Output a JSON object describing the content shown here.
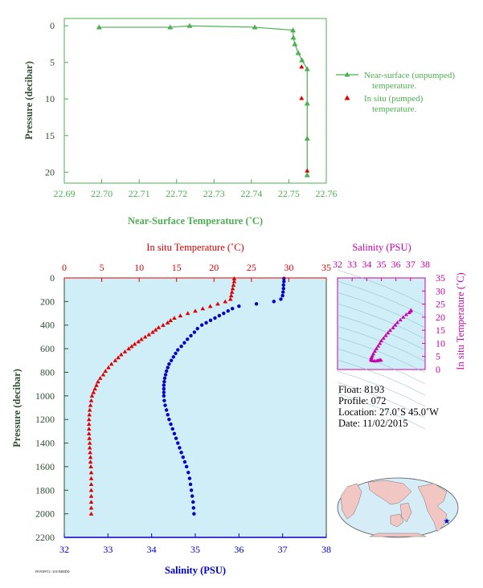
{
  "colors": {
    "green": "#4caf50",
    "red": "#e00000",
    "blue": "#0000cc",
    "magenta": "#cc00aa",
    "panel_bg": "#cfeef8",
    "axis_dark": "#2f4f2f"
  },
  "top_chart": {
    "xlabel": "Near-Surface Temperature (˚C)",
    "ylabel": "Pressure (decibar)",
    "xticks": [
      "22.69",
      "22.70",
      "22.71",
      "22.72",
      "22.73",
      "22.74",
      "22.75",
      "22.76"
    ],
    "yticks": [
      "0",
      "5",
      "10",
      "15",
      "20"
    ],
    "legend": {
      "unpumped_l1": "Near-surface (unpumped)",
      "unpumped_l2": "temperature.",
      "pumped_l1": "In situ (pumped)",
      "pumped_l2": "temperature."
    }
  },
  "bottom_chart": {
    "temp_label": "In situ Temperature (˚C)",
    "sal_label": "Salinity (PSU)",
    "ylabel": "Pressure (decibar)",
    "temp_ticks": [
      "0",
      "5",
      "10",
      "15",
      "20",
      "25",
      "30",
      "35"
    ],
    "sal_ticks": [
      "32",
      "33",
      "34",
      "35",
      "36",
      "37",
      "38"
    ],
    "pres_ticks": [
      "0",
      "200",
      "400",
      "600",
      "800",
      "1000",
      "1200",
      "1400",
      "1600",
      "1800",
      "2000",
      "2200"
    ]
  },
  "ts_chart": {
    "xlabel": "Salinity (PSU)",
    "ylabel": "In situ Temperature (˚C)",
    "sal_ticks": [
      "32",
      "33",
      "34",
      "35",
      "36",
      "37",
      "38"
    ],
    "temp_ticks": [
      "0",
      "5",
      "10",
      "15",
      "20",
      "25",
      "30",
      "35"
    ]
  },
  "info": {
    "float": "Float:  8193",
    "profile": "Profile:  072",
    "location": "Location:  27.0˚S  45.0˚W",
    "date": "Date:  11/02/2015"
  },
  "footer_id": "F8193P072 / 2015MMDD",
  "chart_data": [
    {
      "type": "line",
      "name": "near-surface",
      "xlabel": "Near-Surface Temperature (˚C)",
      "ylabel": "Pressure (decibar)",
      "xlim": [
        22.69,
        22.76
      ],
      "ylim": [
        21.5,
        -1
      ],
      "series": [
        {
          "name": "Near-surface (unpumped) temperature.",
          "points": [
            [
              22.6993,
              0.2
            ],
            [
              22.7183,
              0.2
            ],
            [
              22.7235,
              0.0
            ],
            [
              22.7409,
              0.2
            ],
            [
              22.7511,
              0.6
            ],
            [
              22.7512,
              1.6
            ],
            [
              22.7516,
              2.5
            ],
            [
              22.7525,
              3.7
            ],
            [
              22.7535,
              4.7
            ],
            [
              22.7549,
              5.9
            ],
            [
              22.7549,
              10.6
            ],
            [
              22.7549,
              15.4
            ],
            [
              22.7549,
              20.4
            ]
          ]
        },
        {
          "name": "In situ (pumped) temperature.",
          "points": [
            [
              22.7534,
              5.6
            ],
            [
              22.7534,
              9.9
            ],
            [
              22.7549,
              19.8
            ]
          ]
        }
      ]
    },
    {
      "type": "scatter",
      "name": "profile",
      "xlim_temperature": [
        0,
        35
      ],
      "xlim_salinity": [
        32,
        38
      ],
      "ylim": [
        0,
        2200
      ],
      "series": [
        {
          "name": "In situ Temperature (˚C)",
          "points": [
            [
              22.7,
              5
            ],
            [
              22.7,
              30
            ],
            [
              22.6,
              60
            ],
            [
              22.5,
              90
            ],
            [
              22.4,
              120
            ],
            [
              22.3,
              150
            ],
            [
              22.2,
              180
            ],
            [
              21.5,
              200
            ],
            [
              20.5,
              220
            ],
            [
              19.5,
              240
            ],
            [
              18.5,
              260
            ],
            [
              17.5,
              280
            ],
            [
              16.5,
              300
            ],
            [
              15.5,
              320
            ],
            [
              14.7,
              340
            ],
            [
              14.2,
              360
            ],
            [
              13.8,
              380
            ],
            [
              13.2,
              400
            ],
            [
              12.6,
              420
            ],
            [
              12.2,
              440
            ],
            [
              11.8,
              460
            ],
            [
              11.3,
              480
            ],
            [
              10.8,
              500
            ],
            [
              10.3,
              520
            ],
            [
              9.9,
              540
            ],
            [
              9.4,
              560
            ],
            [
              9.0,
              580
            ],
            [
              8.6,
              600
            ],
            [
              8.1,
              625
            ],
            [
              7.6,
              650
            ],
            [
              7.2,
              675
            ],
            [
              6.8,
              700
            ],
            [
              6.3,
              730
            ],
            [
              5.9,
              760
            ],
            [
              5.5,
              790
            ],
            [
              5.2,
              820
            ],
            [
              4.8,
              850
            ],
            [
              4.5,
              880
            ],
            [
              4.3,
              910
            ],
            [
              4.1,
              940
            ],
            [
              3.9,
              970
            ],
            [
              3.7,
              1000
            ],
            [
              3.6,
              1040
            ],
            [
              3.5,
              1080
            ],
            [
              3.4,
              1120
            ],
            [
              3.35,
              1160
            ],
            [
              3.3,
              1200
            ],
            [
              3.3,
              1240
            ],
            [
              3.3,
              1280
            ],
            [
              3.3,
              1320
            ],
            [
              3.35,
              1360
            ],
            [
              3.4,
              1400
            ],
            [
              3.4,
              1440
            ],
            [
              3.45,
              1480
            ],
            [
              3.5,
              1520
            ],
            [
              3.5,
              1560
            ],
            [
              3.55,
              1600
            ],
            [
              3.6,
              1650
            ],
            [
              3.6,
              1700
            ],
            [
              3.6,
              1750
            ],
            [
              3.6,
              1800
            ],
            [
              3.6,
              1850
            ],
            [
              3.6,
              1900
            ],
            [
              3.6,
              1950
            ],
            [
              3.6,
              2000
            ]
          ]
        },
        {
          "name": "Salinity (PSU)",
          "points": [
            [
              37.03,
              5
            ],
            [
              37.03,
              30
            ],
            [
              37.02,
              60
            ],
            [
              37.02,
              90
            ],
            [
              37.01,
              120
            ],
            [
              37.0,
              150
            ],
            [
              36.96,
              180
            ],
            [
              36.8,
              200
            ],
            [
              36.4,
              220
            ],
            [
              36.0,
              240
            ],
            [
              35.85,
              260
            ],
            [
              35.75,
              280
            ],
            [
              35.65,
              300
            ],
            [
              35.55,
              320
            ],
            [
              35.45,
              340
            ],
            [
              35.35,
              360
            ],
            [
              35.25,
              380
            ],
            [
              35.15,
              400
            ],
            [
              35.05,
              430
            ],
            [
              34.98,
              460
            ],
            [
              34.9,
              490
            ],
            [
              34.82,
              520
            ],
            [
              34.75,
              550
            ],
            [
              34.68,
              580
            ],
            [
              34.6,
              610
            ],
            [
              34.55,
              640
            ],
            [
              34.5,
              670
            ],
            [
              34.45,
              700
            ],
            [
              34.4,
              730
            ],
            [
              34.37,
              760
            ],
            [
              34.34,
              790
            ],
            [
              34.32,
              820
            ],
            [
              34.3,
              850
            ],
            [
              34.29,
              880
            ],
            [
              34.28,
              910
            ],
            [
              34.28,
              940
            ],
            [
              34.28,
              970
            ],
            [
              34.28,
              1000
            ],
            [
              34.29,
              1040
            ],
            [
              34.31,
              1080
            ],
            [
              34.34,
              1120
            ],
            [
              34.37,
              1160
            ],
            [
              34.4,
              1200
            ],
            [
              34.44,
              1240
            ],
            [
              34.48,
              1280
            ],
            [
              34.52,
              1320
            ],
            [
              34.56,
              1360
            ],
            [
              34.6,
              1400
            ],
            [
              34.64,
              1440
            ],
            [
              34.68,
              1480
            ],
            [
              34.72,
              1520
            ],
            [
              34.76,
              1560
            ],
            [
              34.8,
              1600
            ],
            [
              34.84,
              1650
            ],
            [
              34.87,
              1700
            ],
            [
              34.89,
              1750
            ],
            [
              34.91,
              1800
            ],
            [
              34.93,
              1850
            ],
            [
              34.95,
              1900
            ],
            [
              34.96,
              1950
            ],
            [
              34.97,
              2000
            ]
          ]
        }
      ]
    },
    {
      "type": "scatter",
      "name": "ts",
      "xlabel": "Salinity (PSU)",
      "ylabel": "In situ Temperature (˚C)",
      "xlim": [
        32,
        38
      ],
      "ylim": [
        0,
        35
      ],
      "series": [
        {
          "name": "T-S",
          "points": [
            [
              37.03,
              22.7
            ],
            [
              37.0,
              22.3
            ],
            [
              36.9,
              21.8
            ],
            [
              36.7,
              21.0
            ],
            [
              36.5,
              20.0
            ],
            [
              36.3,
              19.0
            ],
            [
              36.1,
              18.0
            ],
            [
              35.95,
              17.0
            ],
            [
              35.8,
              16.0
            ],
            [
              35.6,
              15.0
            ],
            [
              35.45,
              14.0
            ],
            [
              35.3,
              13.0
            ],
            [
              35.15,
              12.0
            ],
            [
              35.0,
              11.0
            ],
            [
              34.9,
              10.0
            ],
            [
              34.78,
              9.0
            ],
            [
              34.66,
              8.0
            ],
            [
              34.55,
              7.0
            ],
            [
              34.45,
              6.0
            ],
            [
              34.38,
              5.2
            ],
            [
              34.32,
              4.6
            ],
            [
              34.3,
              4.0
            ],
            [
              34.3,
              3.6
            ],
            [
              34.4,
              3.4
            ],
            [
              34.55,
              3.3
            ],
            [
              34.7,
              3.4
            ],
            [
              34.8,
              3.5
            ],
            [
              34.9,
              3.6
            ],
            [
              34.97,
              3.6
            ]
          ]
        }
      ]
    }
  ]
}
